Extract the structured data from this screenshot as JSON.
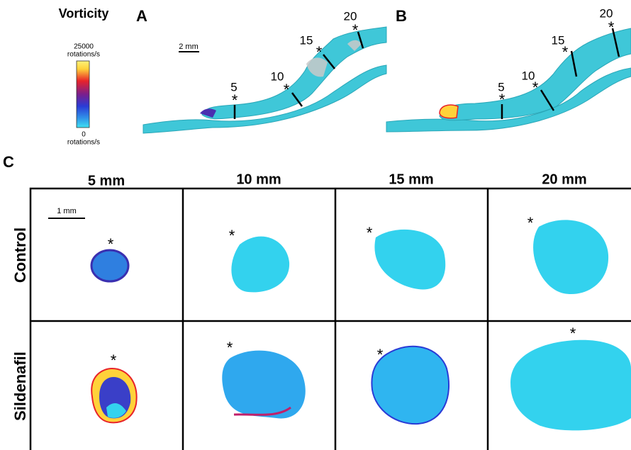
{
  "figure": {
    "colorbar": {
      "title": "Vorticity",
      "max": "25000",
      "max_unit": "rotations/s",
      "min": "0",
      "min_unit": "rotations/s"
    },
    "panel_a": {
      "label": "A",
      "scale": "2 mm",
      "markers": [
        {
          "label": "5",
          "star": "*"
        },
        {
          "label": "10",
          "star": "*"
        },
        {
          "label": "15",
          "star": "*"
        },
        {
          "label": "20",
          "star": "*"
        }
      ]
    },
    "panel_b": {
      "label": "B",
      "markers": [
        {
          "label": "5",
          "star": "*"
        },
        {
          "label": "10",
          "star": "*"
        },
        {
          "label": "15",
          "star": "*"
        },
        {
          "label": "20",
          "star": "*"
        }
      ]
    },
    "panel_c": {
      "label": "C",
      "scale": "1 mm",
      "columns": [
        "5 mm",
        "10 mm",
        "15 mm",
        "20 mm"
      ],
      "rows": [
        {
          "label": "Control",
          "stars": [
            "*",
            "*",
            "*",
            "*"
          ]
        },
        {
          "label": "Sildenafil",
          "stars": [
            "*",
            "*",
            "*",
            "*"
          ]
        }
      ]
    }
  }
}
